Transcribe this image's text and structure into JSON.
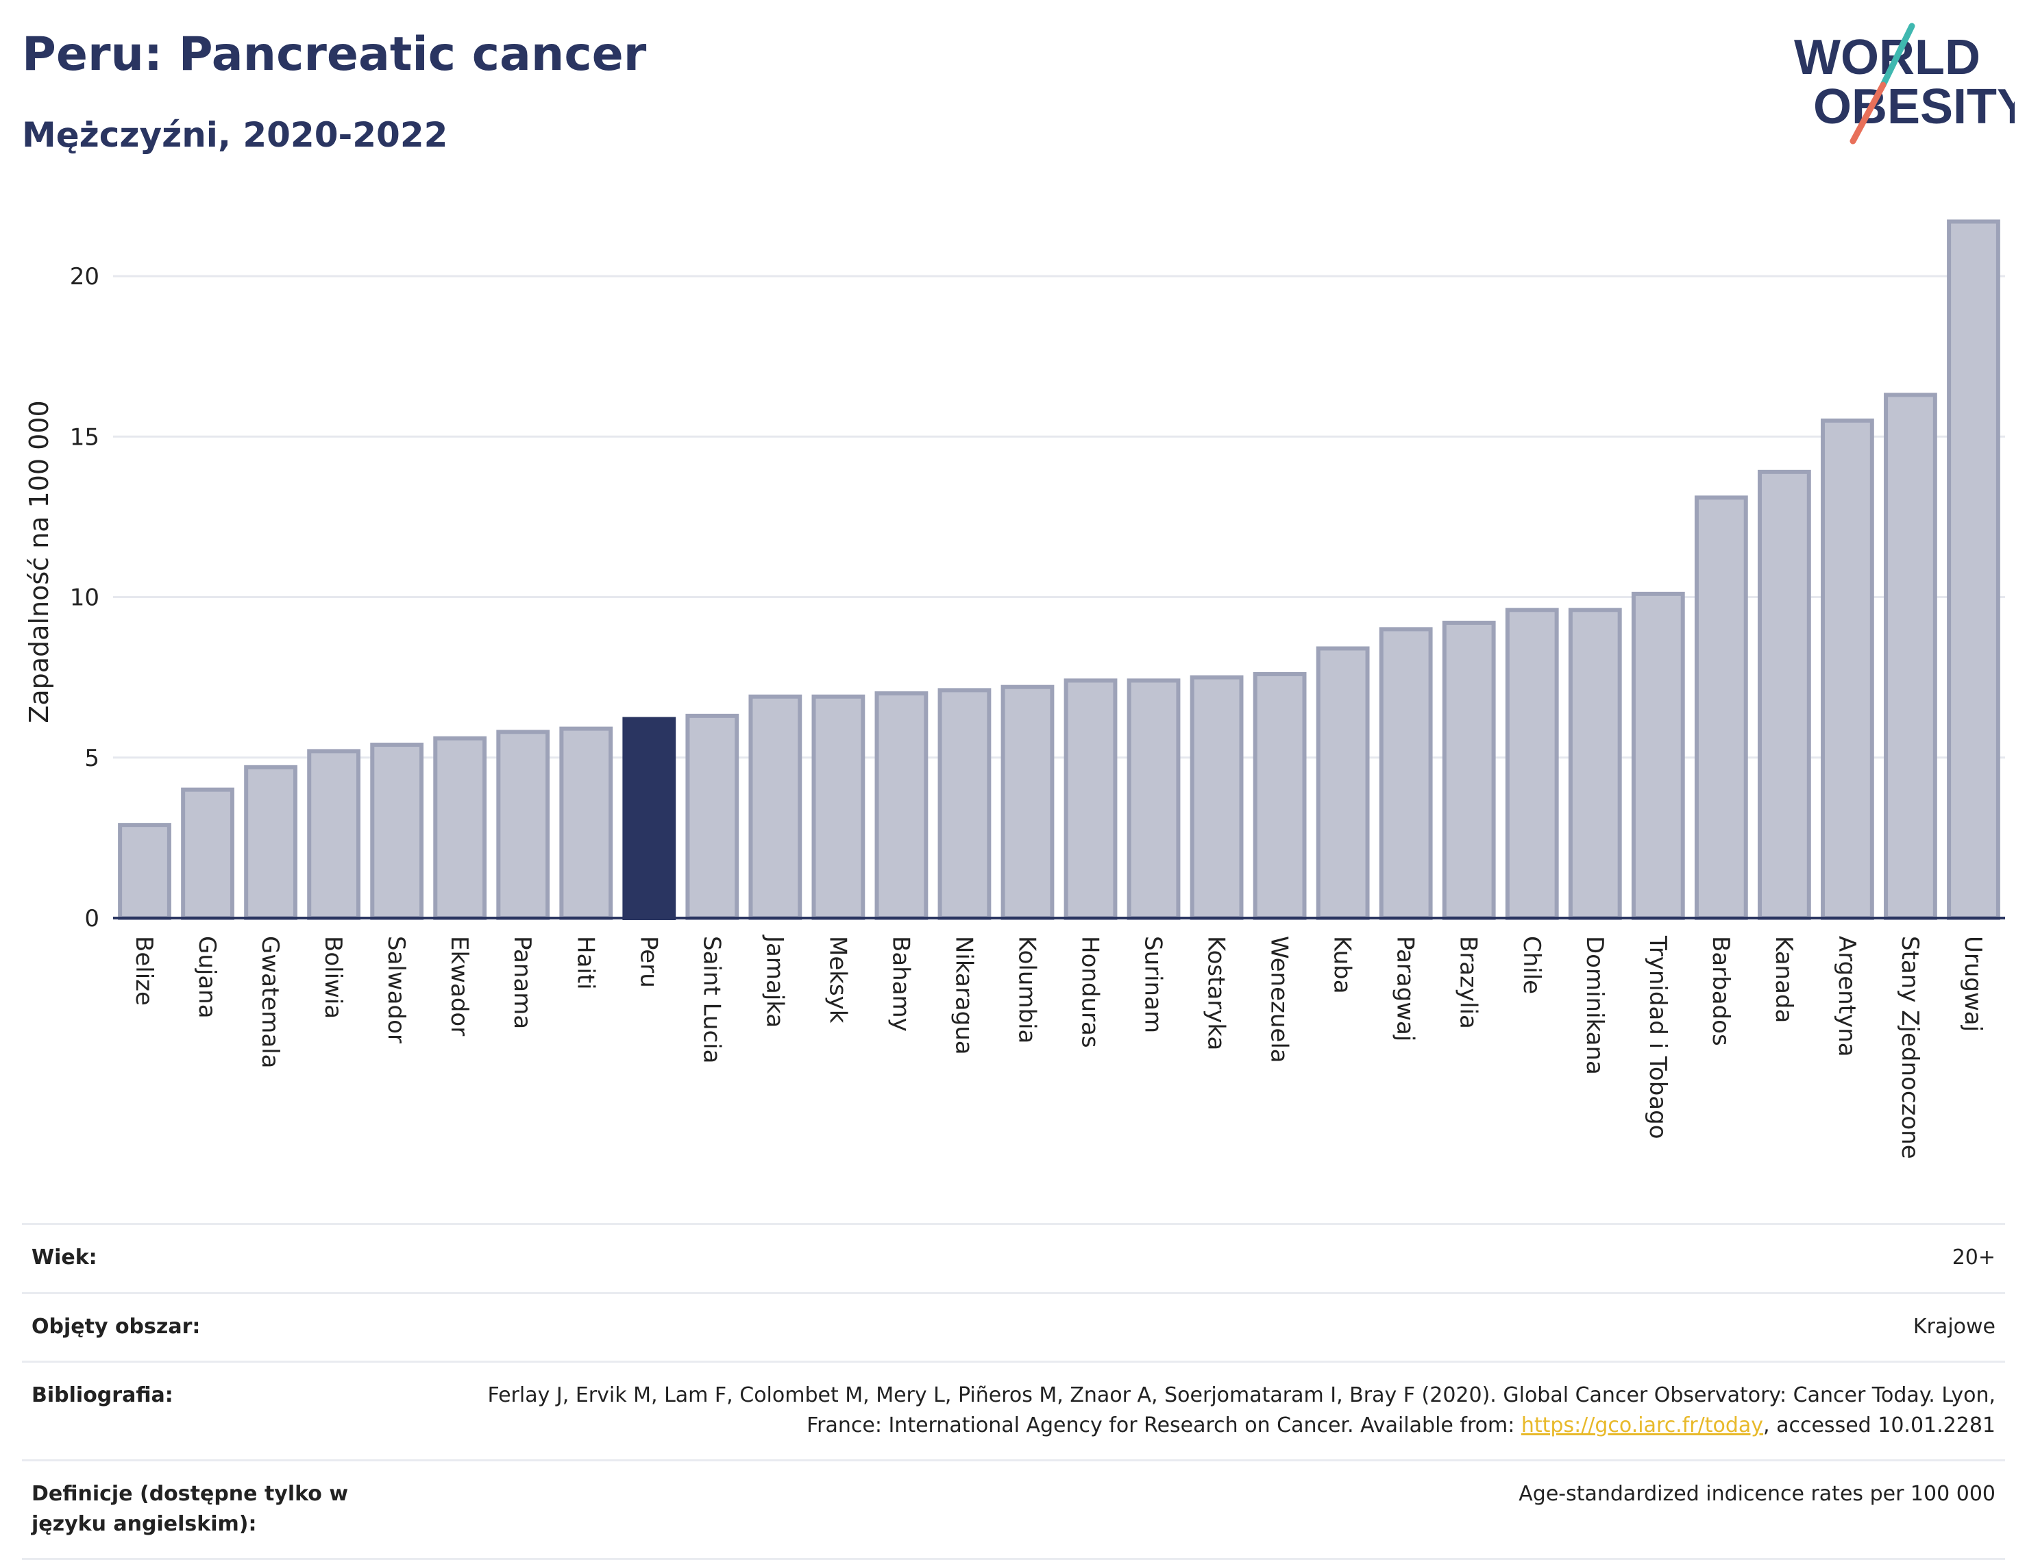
{
  "header": {
    "title": "Peru: Pancreatic cancer",
    "subtitle": "Mężczyźni, 2020-2022"
  },
  "logo": {
    "line1": "WORLD",
    "line2": "OBESITY",
    "text_color": "#2a3561",
    "slash_teal": "#3fb8b0",
    "slash_coral": "#e8705a"
  },
  "colors": {
    "bar": "#c0c3d1",
    "bar_stroke": "#9da2b8",
    "highlight": "#2a3561",
    "grid": "#e6e8ee",
    "axis": "#2a3561"
  },
  "chart_data": {
    "type": "bar",
    "title": "Peru: Pancreatic cancer",
    "subtitle": "Mężczyźni, 2020-2022",
    "ylabel": "Zapadalność na 100 000",
    "xlabel": "",
    "ylim": [
      0,
      22.2
    ],
    "yticks": [
      0,
      5,
      10,
      15,
      20
    ],
    "grid": true,
    "highlight": "Peru",
    "categories": [
      "Belize",
      "Gujana",
      "Gwatemala",
      "Boliwia",
      "Salwador",
      "Ekwador",
      "Panama",
      "Haiti",
      "Peru",
      "Saint Lucia",
      "Jamajka",
      "Meksyk",
      "Bahamy",
      "Nikaragua",
      "Kolumbia",
      "Honduras",
      "Surinam",
      "Kostaryka",
      "Wenezuela",
      "Kuba",
      "Paragwaj",
      "Brazylia",
      "Chile",
      "Dominikana",
      "Trynidad i Tobago",
      "Barbados",
      "Kanada",
      "Argentyna",
      "Stany Zjednoczone",
      "Urugwaj"
    ],
    "values": [
      2.9,
      4.0,
      4.7,
      5.2,
      5.4,
      5.6,
      5.8,
      5.9,
      6.2,
      6.3,
      6.9,
      6.9,
      7.0,
      7.1,
      7.2,
      7.4,
      7.4,
      7.5,
      7.6,
      8.4,
      9.0,
      9.2,
      9.6,
      9.6,
      10.1,
      13.1,
      13.9,
      15.5,
      16.3,
      21.7
    ]
  },
  "info": [
    {
      "key": "Wiek:",
      "value": "20+"
    },
    {
      "key": "Objęty obszar:",
      "value": "Krajowe"
    },
    {
      "key": "Bibliografia:",
      "value_pre": "Ferlay J, Ervik M, Lam F, Colombet M, Mery L, Piñeros M, Znaor A, Soerjomataram I, Bray F (2020). Global Cancer Observatory: Cancer Today. Lyon, France: International Agency for Research on Cancer. Available from: ",
      "link": "https://gco.iarc.fr/today",
      "value_post": ", accessed 10.01.2281"
    },
    {
      "key": "Definicje (dostępne tylko w języku angielskim):",
      "value": "Age-standardized indicence rates per 100 000"
    }
  ]
}
